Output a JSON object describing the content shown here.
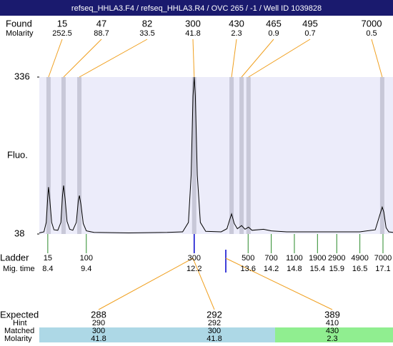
{
  "chart_data": {
    "type": "electropherogram",
    "title": "refseq_HHLA3.F4 / refseq_HHLA3.R4 / OVC 265 / -1 / Well ID 1039828",
    "ylabel": "Fluo.",
    "ylim": [
      38,
      336
    ],
    "yticks": [
      38,
      336
    ],
    "xlim": [
      8.18,
      17.36
    ],
    "found": {
      "label": "Found",
      "molarity_label": "Molarity",
      "sizes": [
        15,
        47,
        82,
        300,
        430,
        465,
        495,
        7000
      ],
      "molarity": [
        252.5,
        88.7,
        33.5,
        41.8,
        2.3,
        0.9,
        0.7,
        0.5
      ],
      "mig_time": [
        8.42,
        8.81,
        9.22,
        12.2,
        13.17,
        13.43,
        13.61,
        17.08
      ]
    },
    "ladder": {
      "label": "Ladder",
      "mig_time_label": "Mig. time",
      "sizes": [
        15,
        100,
        300,
        500,
        700,
        1100,
        1900,
        2900,
        4900,
        7000
      ],
      "mig_time": [
        8.4,
        9.4,
        12.2,
        13.6,
        14.2,
        14.8,
        15.4,
        15.9,
        16.5,
        17.1
      ]
    },
    "trace": {
      "mig_time": [
        8.18,
        8.3,
        8.36,
        8.4,
        8.42,
        8.45,
        8.5,
        8.56,
        8.66,
        8.74,
        8.78,
        8.81,
        8.85,
        8.9,
        8.97,
        9.05,
        9.14,
        9.19,
        9.22,
        9.26,
        9.32,
        9.4,
        9.6,
        10.5,
        11.5,
        11.9,
        12.05,
        12.12,
        12.17,
        12.2,
        12.23,
        12.28,
        12.36,
        12.5,
        12.9,
        13.05,
        13.12,
        13.17,
        13.24,
        13.32,
        13.43,
        13.52,
        13.61,
        13.7,
        14.0,
        14.2,
        14.6,
        15.5,
        16.5,
        16.9,
        17.0,
        17.08,
        17.12,
        17.18,
        17.25,
        17.36
      ],
      "fluo": [
        40,
        42,
        60,
        110,
        127,
        105,
        60,
        46,
        45,
        60,
        110,
        130,
        105,
        62,
        47,
        45,
        60,
        100,
        111,
        95,
        58,
        44,
        41,
        40,
        41,
        42,
        60,
        150,
        300,
        336,
        300,
        150,
        60,
        43,
        42,
        48,
        65,
        76,
        58,
        48,
        54,
        47,
        51,
        45,
        47,
        44,
        42,
        42,
        42,
        46,
        70,
        89,
        80,
        50,
        42,
        41
      ]
    },
    "expected": {
      "label": "Expected",
      "hint_label": "Hint",
      "matched_label": "Matched",
      "molarity_label": "Molarity",
      "sizes": [
        288,
        292,
        389
      ],
      "hint": [
        290,
        292,
        410
      ],
      "matched": [
        300,
        300,
        430
      ],
      "molarity": [
        41.8,
        41.8,
        2.3
      ]
    }
  }
}
